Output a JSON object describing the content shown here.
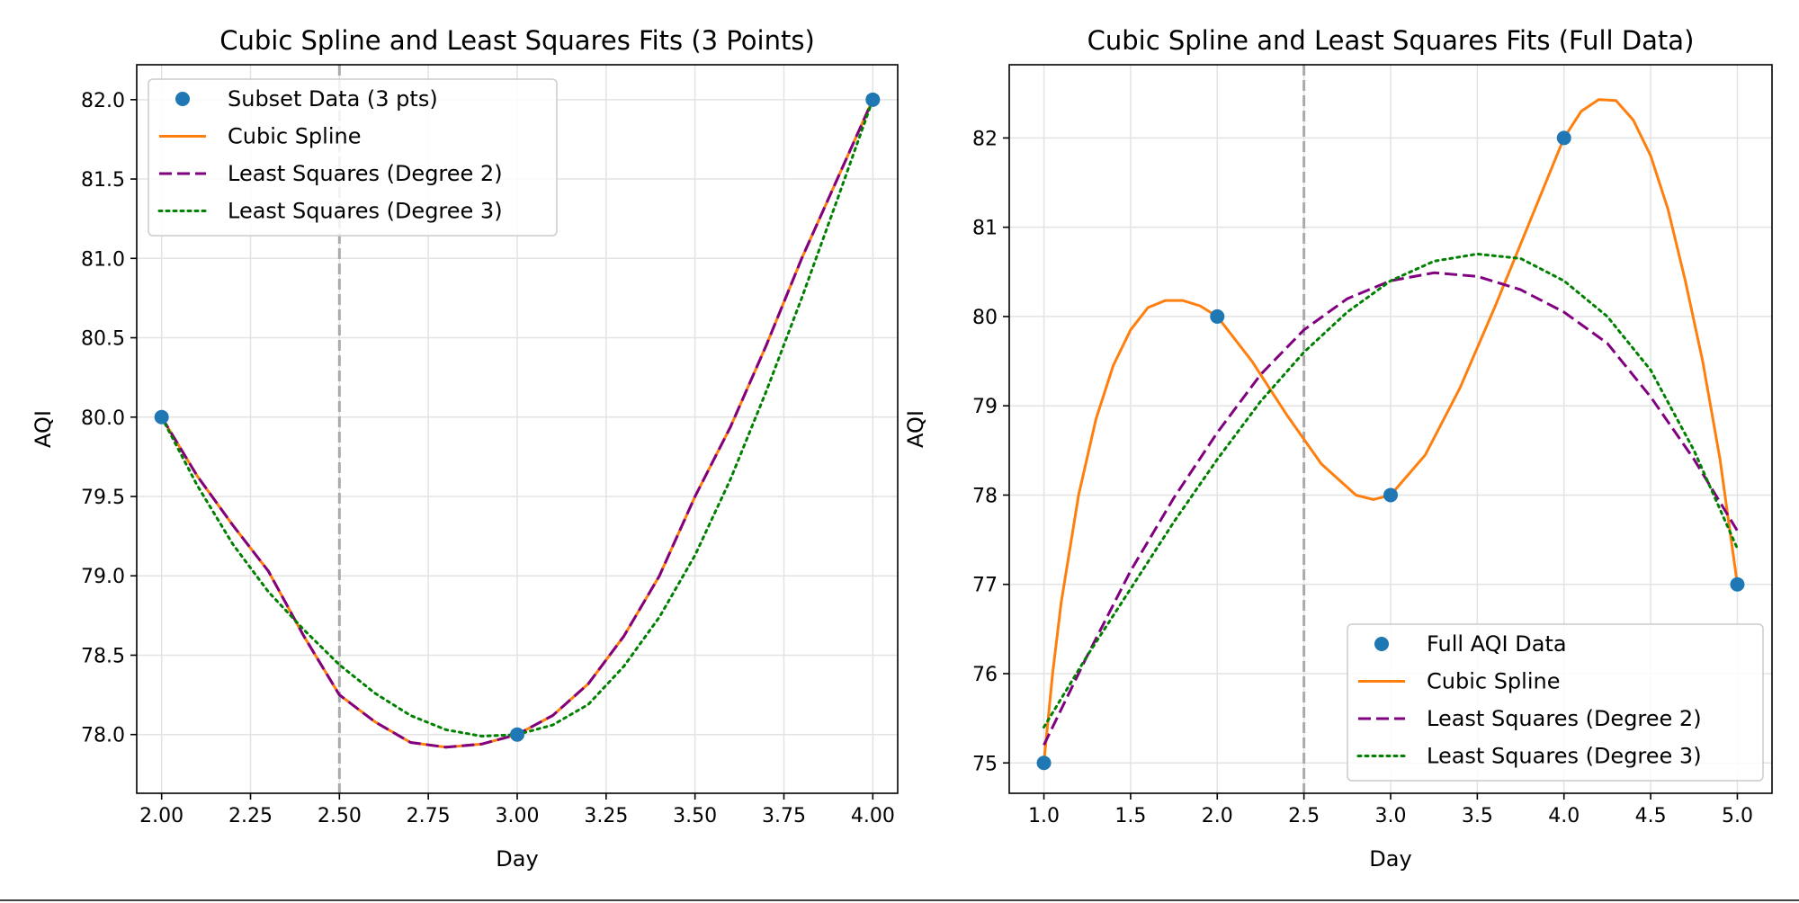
{
  "chart_data": [
    {
      "type": "line",
      "title": "Cubic Spline and Least Squares Fits (3 Points)",
      "xlabel": "Day",
      "ylabel": "AQI",
      "xlim": [
        1.93,
        4.07
      ],
      "ylim": [
        77.63,
        82.22
      ],
      "xticks": [
        "2.00",
        "2.25",
        "2.50",
        "2.75",
        "3.00",
        "3.25",
        "3.50",
        "3.75",
        "4.00"
      ],
      "xtick_values": [
        2.0,
        2.25,
        2.5,
        2.75,
        3.0,
        3.25,
        3.5,
        3.75,
        4.0
      ],
      "yticks": [
        "78.0",
        "78.5",
        "79.0",
        "79.5",
        "80.0",
        "80.5",
        "81.0",
        "81.5",
        "82.0"
      ],
      "ytick_values": [
        78.0,
        78.5,
        79.0,
        79.5,
        80.0,
        80.5,
        81.0,
        81.5,
        82.0
      ],
      "grid": true,
      "vline_x": 2.5,
      "legend_position": "upper-left",
      "points": {
        "name": "Subset Data (3 pts)",
        "x": [
          2,
          3,
          4
        ],
        "y": [
          80,
          78,
          82
        ]
      },
      "series": [
        {
          "name": "Cubic Spline",
          "style": "solid",
          "color": "#ff7f0e",
          "x": [
            2.0,
            2.1,
            2.2,
            2.3,
            2.4,
            2.5,
            2.6,
            2.7,
            2.8,
            2.9,
            3.0,
            3.1,
            3.2,
            3.3,
            3.4,
            3.5,
            3.6,
            3.7,
            3.8,
            3.9,
            4.0
          ],
          "y": [
            80.0,
            79.63,
            79.32,
            79.03,
            78.62,
            78.25,
            78.08,
            77.95,
            77.92,
            77.94,
            78.0,
            78.12,
            78.32,
            78.62,
            79.0,
            79.5,
            79.94,
            80.45,
            81.0,
            81.5,
            82.0
          ]
        },
        {
          "name": "Least Squares (Degree 2)",
          "style": "dashed",
          "color": "#800080",
          "x": [
            2.0,
            2.1,
            2.2,
            2.3,
            2.4,
            2.5,
            2.6,
            2.7,
            2.8,
            2.9,
            3.0,
            3.1,
            3.2,
            3.3,
            3.4,
            3.5,
            3.6,
            3.7,
            3.8,
            3.9,
            4.0
          ],
          "y": [
            80.0,
            79.63,
            79.32,
            79.03,
            78.62,
            78.25,
            78.08,
            77.95,
            77.92,
            77.94,
            78.0,
            78.12,
            78.32,
            78.62,
            79.0,
            79.5,
            79.94,
            80.45,
            81.0,
            81.5,
            82.0
          ]
        },
        {
          "name": "Least Squares (Degree 3)",
          "style": "dotted",
          "color": "#008000",
          "x": [
            2.0,
            2.1,
            2.2,
            2.3,
            2.4,
            2.5,
            2.6,
            2.7,
            2.8,
            2.9,
            3.0,
            3.1,
            3.2,
            3.3,
            3.4,
            3.5,
            3.6,
            3.7,
            3.8,
            3.9,
            4.0
          ],
          "y": [
            80.0,
            79.57,
            79.2,
            78.9,
            78.66,
            78.44,
            78.26,
            78.12,
            78.03,
            77.99,
            78.0,
            78.06,
            78.19,
            78.43,
            78.74,
            79.13,
            79.61,
            80.16,
            80.75,
            81.37,
            82.0
          ]
        }
      ]
    },
    {
      "type": "line",
      "title": "Cubic Spline and Least Squares Fits (Full Data)",
      "xlabel": "Day",
      "ylabel": "AQI",
      "xlim": [
        0.8,
        5.2
      ],
      "ylim": [
        74.66,
        82.82
      ],
      "xticks": [
        "1.0",
        "1.5",
        "2.0",
        "2.5",
        "3.0",
        "3.5",
        "4.0",
        "4.5",
        "5.0"
      ],
      "xtick_values": [
        1.0,
        1.5,
        2.0,
        2.5,
        3.0,
        3.5,
        4.0,
        4.5,
        5.0
      ],
      "yticks": [
        "75",
        "76",
        "77",
        "78",
        "79",
        "80",
        "81",
        "82"
      ],
      "ytick_values": [
        75,
        76,
        77,
        78,
        79,
        80,
        81,
        82
      ],
      "grid": true,
      "vline_x": 2.5,
      "legend_position": "lower-right",
      "points": {
        "name": "Full AQI Data",
        "x": [
          1,
          2,
          3,
          4,
          5
        ],
        "y": [
          75,
          80,
          78,
          82,
          77
        ]
      },
      "series": [
        {
          "name": "Cubic Spline",
          "style": "solid",
          "color": "#ff7f0e",
          "x": [
            1.0,
            1.05,
            1.1,
            1.2,
            1.3,
            1.4,
            1.5,
            1.6,
            1.7,
            1.8,
            1.9,
            2.0,
            2.2,
            2.4,
            2.6,
            2.8,
            2.9,
            3.0,
            3.2,
            3.4,
            3.6,
            3.8,
            4.0,
            4.1,
            4.2,
            4.3,
            4.4,
            4.5,
            4.6,
            4.7,
            4.8,
            4.9,
            4.95,
            5.0
          ],
          "y": [
            75.0,
            76.0,
            76.8,
            78.0,
            78.85,
            79.45,
            79.85,
            80.1,
            80.18,
            80.18,
            80.12,
            80.0,
            79.5,
            78.9,
            78.35,
            78.0,
            77.95,
            78.0,
            78.45,
            79.2,
            80.1,
            81.05,
            82.0,
            82.3,
            82.43,
            82.42,
            82.2,
            81.8,
            81.2,
            80.4,
            79.5,
            78.4,
            77.7,
            77.0
          ]
        },
        {
          "name": "Least Squares (Degree 2)",
          "style": "dashed",
          "color": "#800080",
          "x": [
            1.0,
            1.25,
            1.5,
            1.75,
            2.0,
            2.25,
            2.5,
            2.75,
            3.0,
            3.25,
            3.5,
            3.75,
            4.0,
            4.25,
            4.5,
            4.75,
            5.0
          ],
          "y": [
            75.2,
            76.2,
            77.15,
            77.97,
            78.7,
            79.35,
            79.85,
            80.2,
            80.4,
            80.49,
            80.45,
            80.3,
            80.05,
            79.7,
            79.1,
            78.4,
            77.6
          ]
        },
        {
          "name": "Least Squares (Degree 3)",
          "style": "dotted",
          "color": "#008000",
          "x": [
            1.0,
            1.25,
            1.5,
            1.75,
            2.0,
            2.25,
            2.5,
            2.75,
            3.0,
            3.25,
            3.5,
            3.75,
            4.0,
            4.25,
            4.5,
            4.75,
            5.0
          ],
          "y": [
            75.4,
            76.2,
            76.95,
            77.7,
            78.4,
            79.05,
            79.6,
            80.05,
            80.4,
            80.62,
            80.7,
            80.65,
            80.4,
            80.0,
            79.4,
            78.5,
            77.4
          ]
        }
      ]
    }
  ]
}
